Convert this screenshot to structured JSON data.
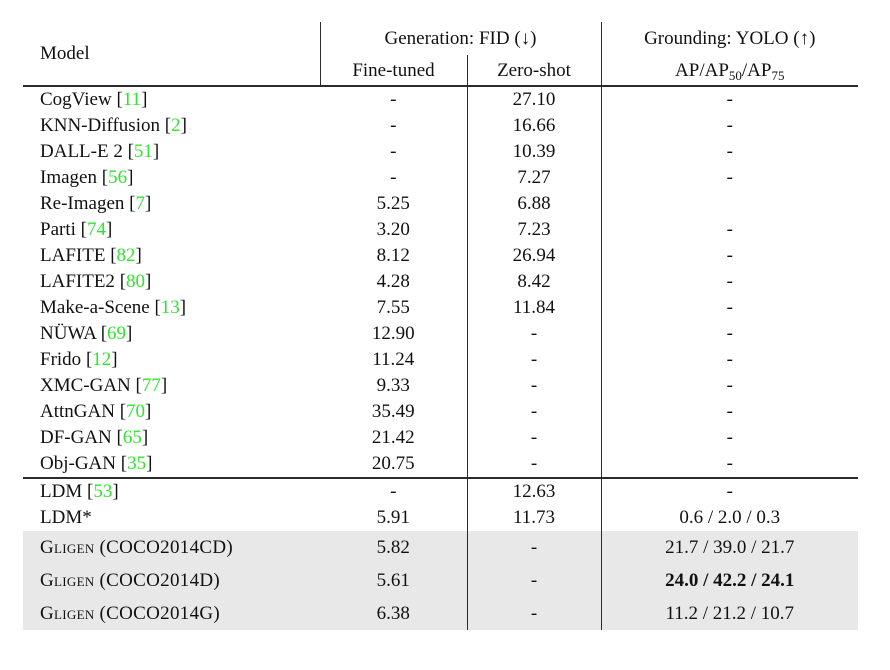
{
  "colors": {
    "citation_green": "#2ee52e",
    "row_highlight_gray": "#e8e8e8",
    "rule_color": "#2b2b2b",
    "text_color": "#111111",
    "background": "#ffffff"
  },
  "table": {
    "header": {
      "model": "Model",
      "generation": "Generation: FID (↓)",
      "grounding": "Grounding: YOLO (↑)",
      "fine_tuned": "Fine-tuned",
      "zero_shot": "Zero-shot",
      "ap": {
        "p1": "AP/AP",
        "s1": "50",
        "p2": "/AP",
        "s2": "75"
      }
    },
    "cite_brackets": {
      "open": "[",
      "close": "]"
    },
    "rows": [
      {
        "model": "CogView",
        "cite": "11",
        "fine": "-",
        "zero": "27.10",
        "ap": "-",
        "sep": false,
        "highlight": false,
        "smallcaps": false,
        "bold_ap": false
      },
      {
        "model": "KNN-Diffusion",
        "cite": "2",
        "fine": "-",
        "zero": "16.66",
        "ap": "-",
        "sep": false,
        "highlight": false,
        "smallcaps": false,
        "bold_ap": false
      },
      {
        "model": "DALL-E 2",
        "cite": "51",
        "fine": "-",
        "zero": "10.39",
        "ap": "-",
        "sep": false,
        "highlight": false,
        "smallcaps": false,
        "bold_ap": false
      },
      {
        "model": "Imagen",
        "cite": "56",
        "fine": "-",
        "zero": "7.27",
        "ap": "-",
        "sep": false,
        "highlight": false,
        "smallcaps": false,
        "bold_ap": false
      },
      {
        "model": "Re-Imagen",
        "cite": "7",
        "fine": "5.25",
        "zero": "6.88",
        "ap": "",
        "sep": false,
        "highlight": false,
        "smallcaps": false,
        "bold_ap": false
      },
      {
        "model": "Parti",
        "cite": "74",
        "fine": "3.20",
        "zero": "7.23",
        "ap": "-",
        "sep": false,
        "highlight": false,
        "smallcaps": false,
        "bold_ap": false
      },
      {
        "model": "LAFITE",
        "cite": "82",
        "fine": "8.12",
        "zero": "26.94",
        "ap": "-",
        "sep": false,
        "highlight": false,
        "smallcaps": false,
        "bold_ap": false
      },
      {
        "model": "LAFITE2",
        "cite": "80",
        "fine": "4.28",
        "zero": "8.42",
        "ap": "-",
        "sep": false,
        "highlight": false,
        "smallcaps": false,
        "bold_ap": false
      },
      {
        "model": "Make-a-Scene",
        "cite": "13",
        "fine": "7.55",
        "zero": "11.84",
        "ap": "-",
        "sep": false,
        "highlight": false,
        "smallcaps": false,
        "bold_ap": false
      },
      {
        "model": "NÜWA",
        "cite": "69",
        "fine": "12.90",
        "zero": "-",
        "ap": "-",
        "sep": false,
        "highlight": false,
        "smallcaps": false,
        "bold_ap": false
      },
      {
        "model": "Frido",
        "cite": "12",
        "fine": "11.24",
        "zero": "-",
        "ap": "-",
        "sep": false,
        "highlight": false,
        "smallcaps": false,
        "bold_ap": false
      },
      {
        "model": "XMC-GAN",
        "cite": "77",
        "fine": "9.33",
        "zero": "-",
        "ap": "-",
        "sep": false,
        "highlight": false,
        "smallcaps": false,
        "bold_ap": false
      },
      {
        "model": "AttnGAN",
        "cite": "70",
        "fine": "35.49",
        "zero": "-",
        "ap": "-",
        "sep": false,
        "highlight": false,
        "smallcaps": false,
        "bold_ap": false
      },
      {
        "model": "DF-GAN",
        "cite": "65",
        "fine": "21.42",
        "zero": "-",
        "ap": "-",
        "sep": false,
        "highlight": false,
        "smallcaps": false,
        "bold_ap": false
      },
      {
        "model": "Obj-GAN",
        "cite": "35",
        "fine": "20.75",
        "zero": "-",
        "ap": "-",
        "sep": false,
        "highlight": false,
        "smallcaps": false,
        "bold_ap": false
      },
      {
        "model": "LDM",
        "cite": "53",
        "fine": "-",
        "zero": "12.63",
        "ap": "-",
        "sep": true,
        "highlight": false,
        "smallcaps": false,
        "bold_ap": false
      },
      {
        "model": "LDM*",
        "cite": null,
        "fine": "5.91",
        "zero": "11.73",
        "ap": "0.6 / 2.0 / 0.3",
        "sep": false,
        "highlight": false,
        "smallcaps": false,
        "bold_ap": false
      },
      {
        "model": "Gligen (COCO2014CD)",
        "cite": null,
        "fine": "5.82",
        "zero": "-",
        "ap": "21.7 / 39.0 / 21.7",
        "sep": false,
        "highlight": true,
        "smallcaps": true,
        "bold_ap": false
      },
      {
        "model": "Gligen (COCO2014D)",
        "cite": null,
        "fine": "5.61",
        "zero": "-",
        "ap": "24.0 / 42.2 / 24.1",
        "sep": false,
        "highlight": true,
        "smallcaps": true,
        "bold_ap": true
      },
      {
        "model": "Gligen (COCO2014G)",
        "cite": null,
        "fine": "6.38",
        "zero": "-",
        "ap": "11.2 / 21.2 / 10.7",
        "sep": false,
        "highlight": true,
        "smallcaps": true,
        "bold_ap": false
      }
    ]
  }
}
